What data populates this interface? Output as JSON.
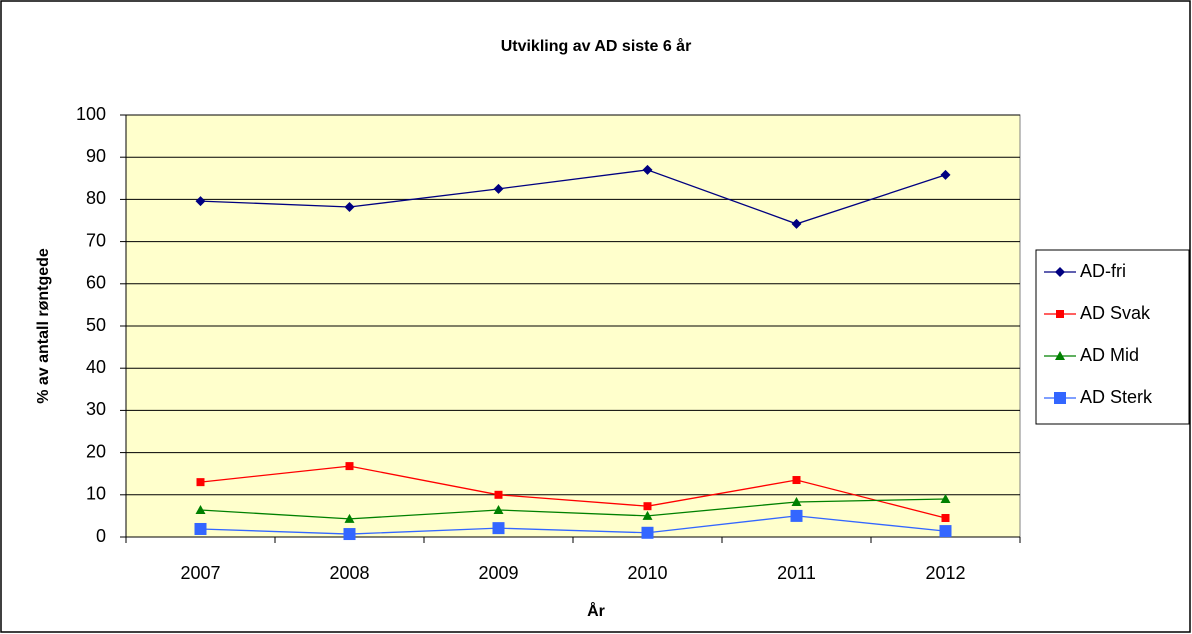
{
  "chart_data": {
    "type": "line",
    "title": "Utvikling av AD siste 6 år",
    "x_label": "År",
    "y_label": "% av antall røntgede",
    "categories": [
      "2007",
      "2008",
      "2009",
      "2010",
      "2011",
      "2012"
    ],
    "series": [
      {
        "name": "AD-fri",
        "color": "#000080",
        "marker": "diamond",
        "values": [
          79.6,
          78.2,
          82.5,
          87,
          74.2,
          85.8
        ]
      },
      {
        "name": "AD Svak",
        "color": "#ff0000",
        "marker": "square",
        "values": [
          13,
          16.8,
          10,
          7.3,
          13.5,
          4.5
        ]
      },
      {
        "name": "AD Mid",
        "color": "#008000",
        "marker": "triangle",
        "values": [
          6.4,
          4.3,
          6.4,
          5,
          8.3,
          9
        ]
      },
      {
        "name": "AD Sterk",
        "color": "#3366ff",
        "marker": "bigsquare",
        "values": [
          1.9,
          0.7,
          2.1,
          1,
          5,
          1.4
        ]
      }
    ],
    "ylim": [
      0,
      100
    ],
    "yticks": [
      0,
      10,
      20,
      30,
      40,
      50,
      60,
      70,
      80,
      90,
      100
    ],
    "grid": true,
    "legend": "right",
    "plot_background": "#ffffcc"
  }
}
